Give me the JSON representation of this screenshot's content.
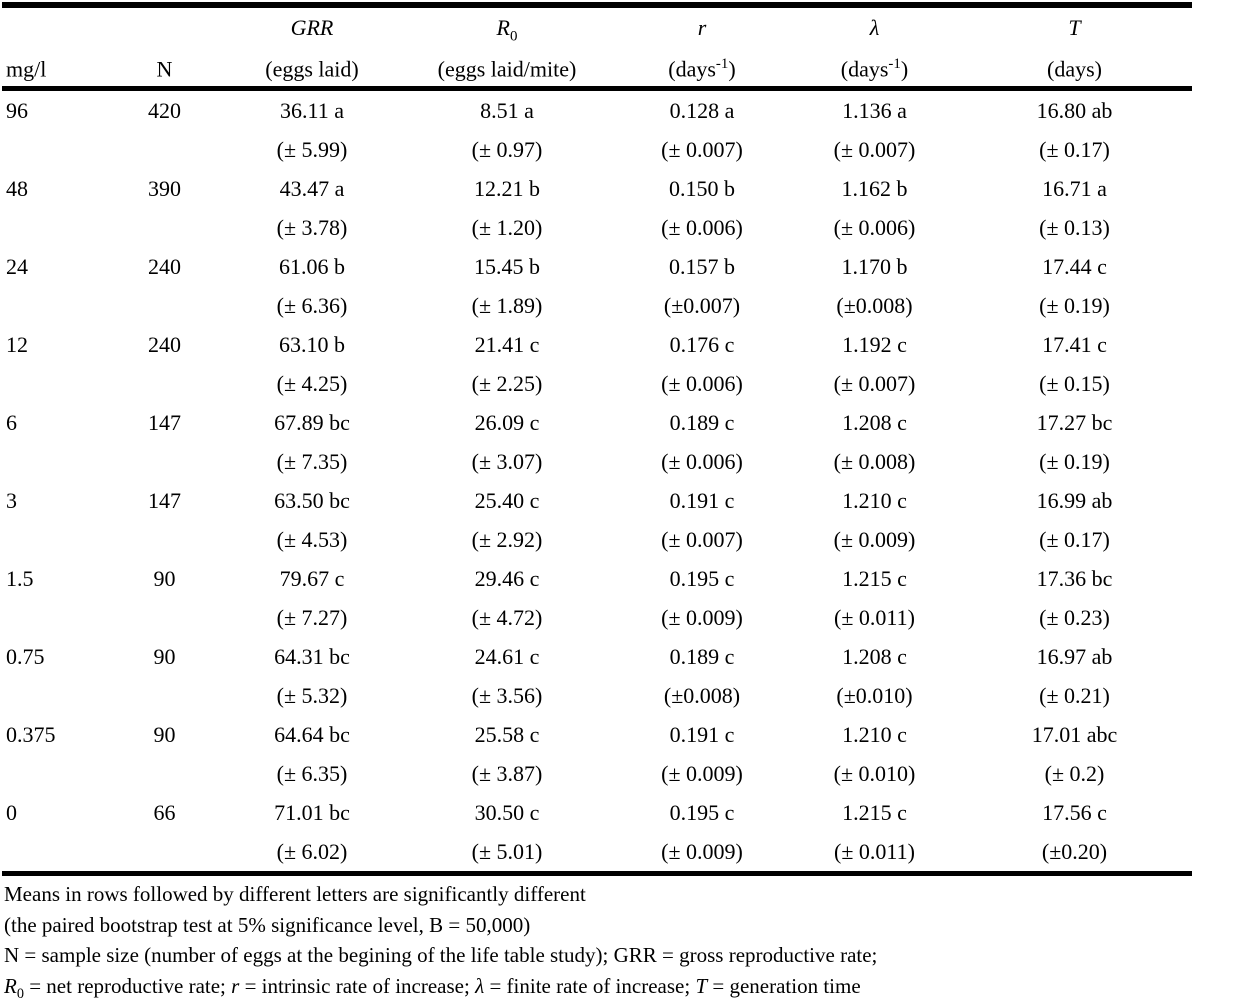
{
  "colors": {
    "text": "#000000",
    "background": "#ffffff",
    "rule": "#000000"
  },
  "table": {
    "columns": [
      {
        "sym": "",
        "sub": "",
        "unit_pre": "mg/l",
        "unit_sup": "",
        "unit_post": ""
      },
      {
        "sym": "",
        "sub": "",
        "unit_pre": "N",
        "unit_sup": "",
        "unit_post": ""
      },
      {
        "sym": "GRR",
        "sub": "",
        "unit_pre": "(eggs laid)",
        "unit_sup": "",
        "unit_post": ""
      },
      {
        "sym": "R",
        "sub": "0",
        "unit_pre": "(eggs laid/mite)",
        "unit_sup": "",
        "unit_post": ""
      },
      {
        "sym": "r",
        "sub": "",
        "unit_pre": "(days",
        "unit_sup": "-1",
        "unit_post": ")"
      },
      {
        "sym": "λ",
        "sub": "",
        "unit_pre": "(days",
        "unit_sup": "-1",
        "unit_post": ")"
      },
      {
        "sym": "T",
        "sub": "",
        "unit_pre": "(days)",
        "unit_sup": "",
        "unit_post": ""
      }
    ],
    "rows": [
      {
        "conc": "96",
        "n": "420",
        "grr": "36.11 a",
        "grr_se": "(± 5.99)",
        "r0": "8.51 a",
        "r0_se": "(± 0.97)",
        "r": "0.128 a",
        "r_se": "(± 0.007)",
        "lambda": "1.136 a",
        "lambda_se": "(± 0.007)",
        "t": "16.80 ab",
        "t_se": "(± 0.17)"
      },
      {
        "conc": "48",
        "n": "390",
        "grr": "43.47 a",
        "grr_se": "(± 3.78)",
        "r0": "12.21 b",
        "r0_se": "(± 1.20)",
        "r": "0.150 b",
        "r_se": "(± 0.006)",
        "lambda": "1.162 b",
        "lambda_se": "(± 0.006)",
        "t": "16.71 a",
        "t_se": "(± 0.13)"
      },
      {
        "conc": "24",
        "n": "240",
        "grr": "61.06 b",
        "grr_se": "(± 6.36)",
        "r0": "15.45 b",
        "r0_se": "(± 1.89)",
        "r": "0.157 b",
        "r_se": "(±0.007)",
        "lambda": "1.170 b",
        "lambda_se": "(±0.008)",
        "t": "17.44 c",
        "t_se": "(± 0.19)"
      },
      {
        "conc": "12",
        "n": "240",
        "grr": "63.10 b",
        "grr_se": "(± 4.25)",
        "r0": "21.41 c",
        "r0_se": "(± 2.25)",
        "r": "0.176 c",
        "r_se": "(± 0.006)",
        "lambda": "1.192 c",
        "lambda_se": "(± 0.007)",
        "t": "17.41 c",
        "t_se": "(± 0.15)"
      },
      {
        "conc": "6",
        "n": "147",
        "grr": "67.89 bc",
        "grr_se": "(± 7.35)",
        "r0": "26.09 c",
        "r0_se": "(± 3.07)",
        "r": "0.189 c",
        "r_se": "(± 0.006)",
        "lambda": "1.208 c",
        "lambda_se": "(± 0.008)",
        "t": "17.27 bc",
        "t_se": "(± 0.19)"
      },
      {
        "conc": "3",
        "n": "147",
        "grr": "63.50 bc",
        "grr_se": "(± 4.53)",
        "r0": "25.40 c",
        "r0_se": "(± 2.92)",
        "r": "0.191 c",
        "r_se": "(± 0.007)",
        "lambda": "1.210 c",
        "lambda_se": "(± 0.009)",
        "t": "16.99 ab",
        "t_se": "(± 0.17)"
      },
      {
        "conc": "1.5",
        "n": "90",
        "grr": "79.67 c",
        "grr_se": "(± 7.27)",
        "r0": "29.46 c",
        "r0_se": "(± 4.72)",
        "r": "0.195 c",
        "r_se": "(± 0.009)",
        "lambda": "1.215 c",
        "lambda_se": "(± 0.011)",
        "t": "17.36 bc",
        "t_se": "(± 0.23)"
      },
      {
        "conc": "0.75",
        "n": "90",
        "grr": "64.31 bc",
        "grr_se": "(± 5.32)",
        "r0": "24.61 c",
        "r0_se": "(± 3.56)",
        "r": "0.189 c",
        "r_se": "(±0.008)",
        "lambda": "1.208 c",
        "lambda_se": "(±0.010)",
        "t": "16.97 ab",
        "t_se": "(± 0.21)"
      },
      {
        "conc": "0.375",
        "n": "90",
        "grr": "64.64 bc",
        "grr_se": "(± 6.35)",
        "r0": "25.58 c",
        "r0_se": "(± 3.87)",
        "r": "0.191 c",
        "r_se": "(± 0.009)",
        "lambda": "1.210 c",
        "lambda_se": "(± 0.010)",
        "t": "17.01 abc",
        "t_se": "(± 0.2)"
      },
      {
        "conc": "0",
        "n": "66",
        "grr": "71.01 bc",
        "grr_se": "(± 6.02)",
        "r0": "30.50 c",
        "r0_se": "(± 5.01)",
        "r": "0.195 c",
        "r_se": "(± 0.009)",
        "lambda": "1.215 c",
        "lambda_se": "(± 0.011)",
        "t": "17.56 c",
        "t_se": "(±0.20)"
      }
    ]
  },
  "footnotes": [
    {
      "parts": [
        {
          "t": "Means in rows followed by different letters are significantly different"
        }
      ]
    },
    {
      "parts": [
        {
          "t": "(the paired bootstrap test at 5% significance level, B = 50,000)"
        }
      ]
    },
    {
      "parts": [
        {
          "t": "N = sample size (number of eggs at the begining of the life table study); GRR = gross reproductive rate;"
        }
      ]
    },
    {
      "parts": [
        {
          "t": "R",
          "italic": true
        },
        {
          "t": "0",
          "sub": true
        },
        {
          "t": " = net reproductive rate; "
        },
        {
          "t": "r",
          "italic": true
        },
        {
          "t": " = intrinsic rate of increase; "
        },
        {
          "t": "λ",
          "italic": true
        },
        {
          "t": " = finite rate of increase; "
        },
        {
          "t": "T",
          "italic": true
        },
        {
          "t": " = generation time"
        }
      ]
    }
  ]
}
